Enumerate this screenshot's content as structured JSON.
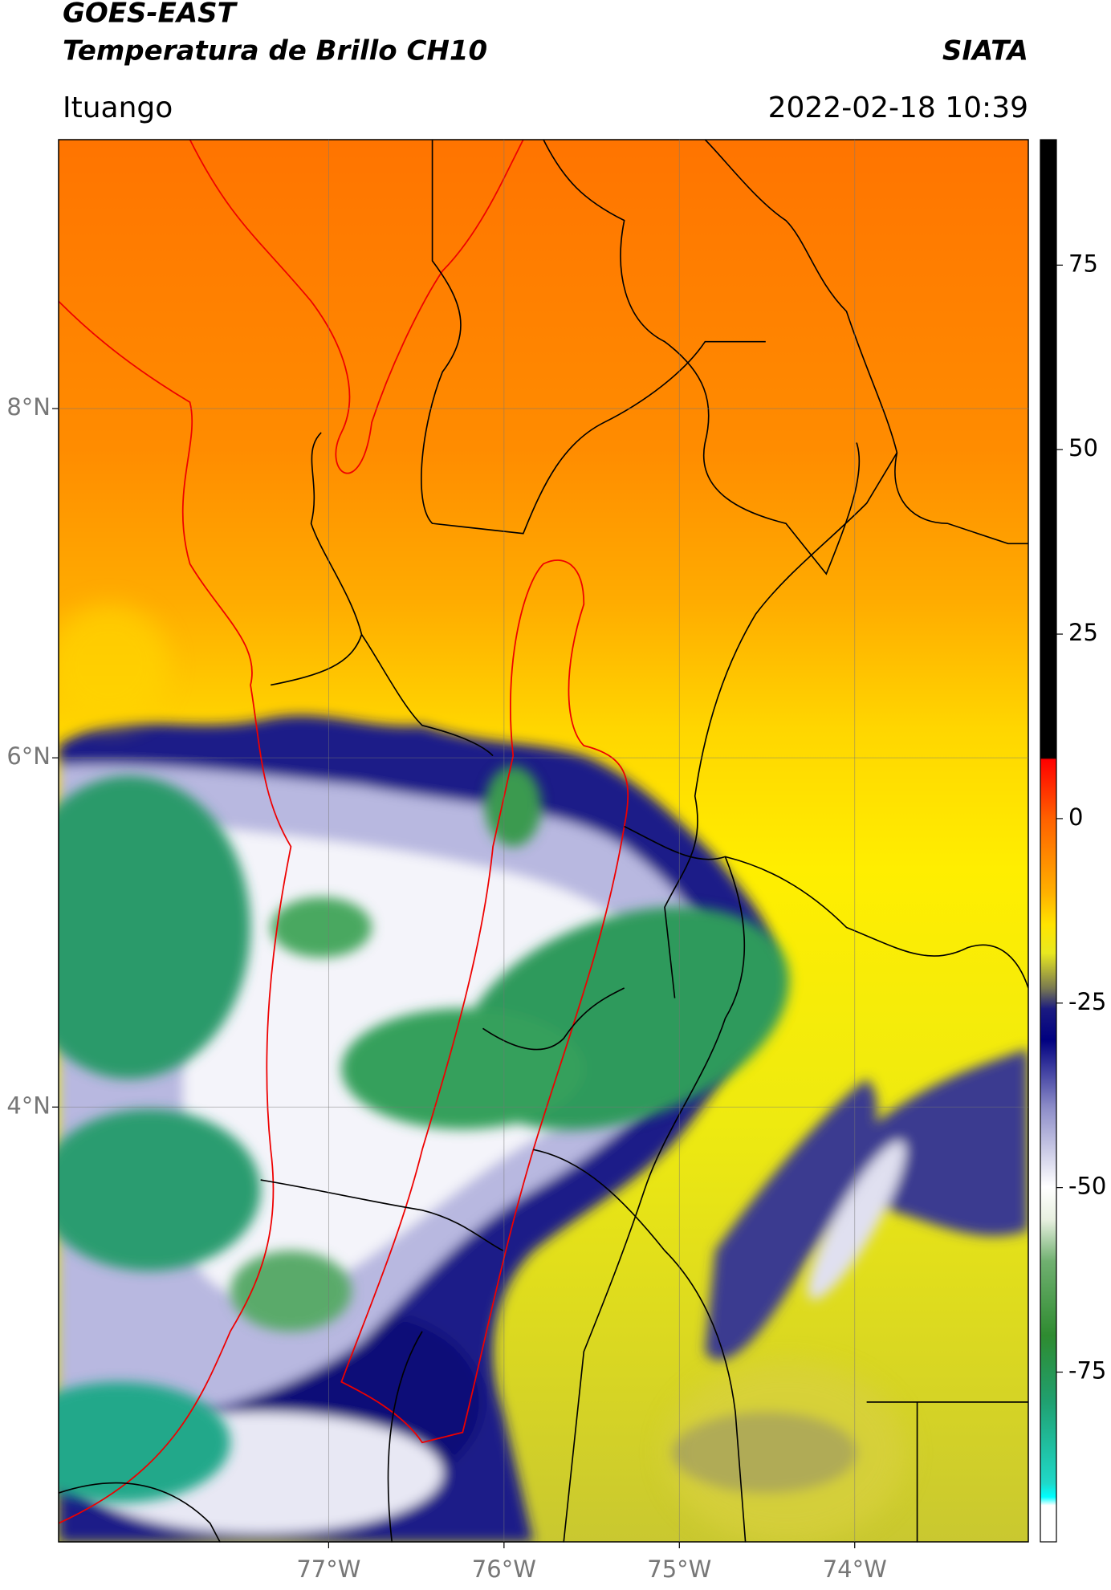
{
  "header": {
    "title": "GOES-EAST",
    "subtitle": "Temperatura de Brillo CH10",
    "source": "SIATA",
    "location": "Ituango",
    "datetime": "2022-02-18 10:39"
  },
  "map": {
    "xlim": [
      -78.54,
      -73.01
    ],
    "ylim": [
      1.51,
      9.54
    ],
    "xticks": [
      {
        "value": -77,
        "label": "77°W"
      },
      {
        "value": -76,
        "label": "76°W"
      },
      {
        "value": -75,
        "label": "75°W"
      },
      {
        "value": -74,
        "label": "74°W"
      }
    ],
    "yticks": [
      {
        "value": 8,
        "label": "8°N"
      },
      {
        "value": 6,
        "label": "6°N"
      },
      {
        "value": 4,
        "label": "4°N"
      }
    ],
    "grid": true
  },
  "colorbar": {
    "lim": [
      -98,
      92
    ],
    "ticks": [
      75,
      50,
      25,
      0,
      -25,
      -50,
      -75
    ]
  }
}
